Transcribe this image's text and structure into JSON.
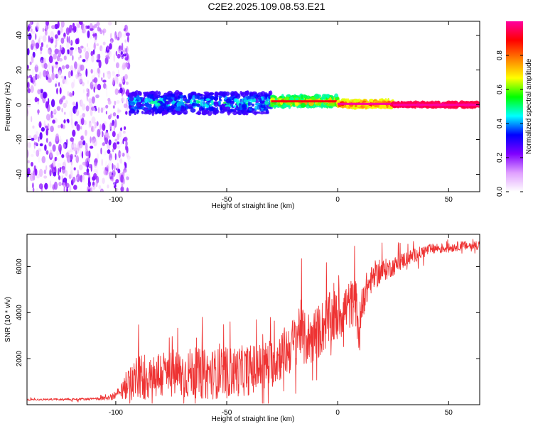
{
  "page": {
    "title": "C2E2.2025.109.08.53.E21"
  },
  "chart_data": [
    {
      "type": "heatmap",
      "title": "C2E2.2025.109.08.53.E21",
      "xlabel": "Height of straight line (km)",
      "ylabel": "Frequency (Hz)",
      "xlim": [
        -140,
        64
      ],
      "ylim": [
        -50,
        48
      ],
      "x_ticks": [
        -100,
        -50,
        0,
        50
      ],
      "x_tick_labels": [
        "-100",
        "-50",
        "0",
        "50"
      ],
      "y_ticks": [
        -40,
        -20,
        0,
        20,
        40
      ],
      "y_tick_labels": [
        "-40",
        "-20",
        "0",
        "20",
        "40"
      ],
      "colorbar": {
        "label": "Normalized spectral amplitude",
        "range": [
          0,
          1
        ],
        "ticks": [
          0.0,
          0.2,
          0.4,
          0.6,
          0.8
        ],
        "tick_labels": [
          "0.0",
          "0.2",
          "0.4",
          "0.6",
          "0.8"
        ],
        "colors": [
          "#ffffff",
          "#e0a0ff",
          "#8000ff",
          "#0000ff",
          "#00ffff",
          "#00ff00",
          "#ffff00",
          "#ff8000",
          "#ff0000",
          "#ff00a0"
        ]
      },
      "regions": [
        {
          "x_range": [
            -140,
            -94
          ],
          "description": "broadband scattered noise across all frequencies",
          "amplitude": [
            0.0,
            0.25
          ]
        },
        {
          "x_range": [
            -94,
            -30
          ],
          "center_freq": 1,
          "half_width": 6,
          "amplitude": [
            0.15,
            0.55
          ]
        },
        {
          "x_range": [
            -30,
            0
          ],
          "center_freq": 2,
          "half_width": 3,
          "amplitude": [
            0.3,
            0.9
          ]
        },
        {
          "x_range": [
            0,
            25
          ],
          "center_freq": 0.5,
          "half_width": 2,
          "amplitude": [
            0.5,
            1.0
          ]
        },
        {
          "x_range": [
            25,
            64
          ],
          "center_freq": 0,
          "half_width": 1,
          "amplitude": [
            0.9,
            1.0
          ]
        }
      ]
    },
    {
      "type": "line",
      "xlabel": "Height of straight line (km)",
      "ylabel": "SNR (10 * v/v)",
      "xlim": [
        -140,
        64
      ],
      "ylim": [
        0,
        7400
      ],
      "x_ticks": [
        -100,
        -50,
        0,
        50
      ],
      "x_tick_labels": [
        "-100",
        "-50",
        "0",
        "50"
      ],
      "y_ticks": [
        2000,
        4000,
        6000
      ],
      "y_tick_labels": [
        "2000",
        "4000",
        "6000"
      ],
      "color": "#ee3333",
      "x": [
        -140,
        -130,
        -120,
        -110,
        -103,
        -98,
        -95,
        -92,
        -90,
        -85,
        -80,
        -75,
        -70,
        -65,
        -60,
        -55,
        -50,
        -45,
        -40,
        -35,
        -30,
        -25,
        -20,
        -17,
        -15,
        -10,
        -5,
        0,
        5,
        8,
        10,
        11,
        15,
        20,
        25,
        30,
        35,
        40,
        45,
        50,
        55,
        60,
        64
      ],
      "y": [
        220,
        230,
        240,
        250,
        300,
        500,
        800,
        1100,
        1200,
        1250,
        1300,
        1350,
        1300,
        1400,
        1300,
        1350,
        1400,
        1450,
        1500,
        1600,
        1800,
        2200,
        2600,
        3400,
        2800,
        3000,
        3600,
        3900,
        4300,
        4500,
        3000,
        4600,
        5400,
        5800,
        6000,
        6300,
        6500,
        6700,
        6800,
        6800,
        6900,
        6900,
        6950
      ],
      "noise_amplitude": [
        40,
        40,
        50,
        50,
        100,
        300,
        600,
        900,
        1000,
        1100,
        1100,
        1100,
        1100,
        1100,
        1100,
        1100,
        1100,
        1100,
        1100,
        1100,
        1100,
        1100,
        1200,
        1300,
        1200,
        1200,
        1200,
        1200,
        1100,
        1000,
        1500,
        900,
        600,
        500,
        400,
        350,
        300,
        250,
        220,
        200,
        200,
        200,
        200
      ]
    }
  ]
}
